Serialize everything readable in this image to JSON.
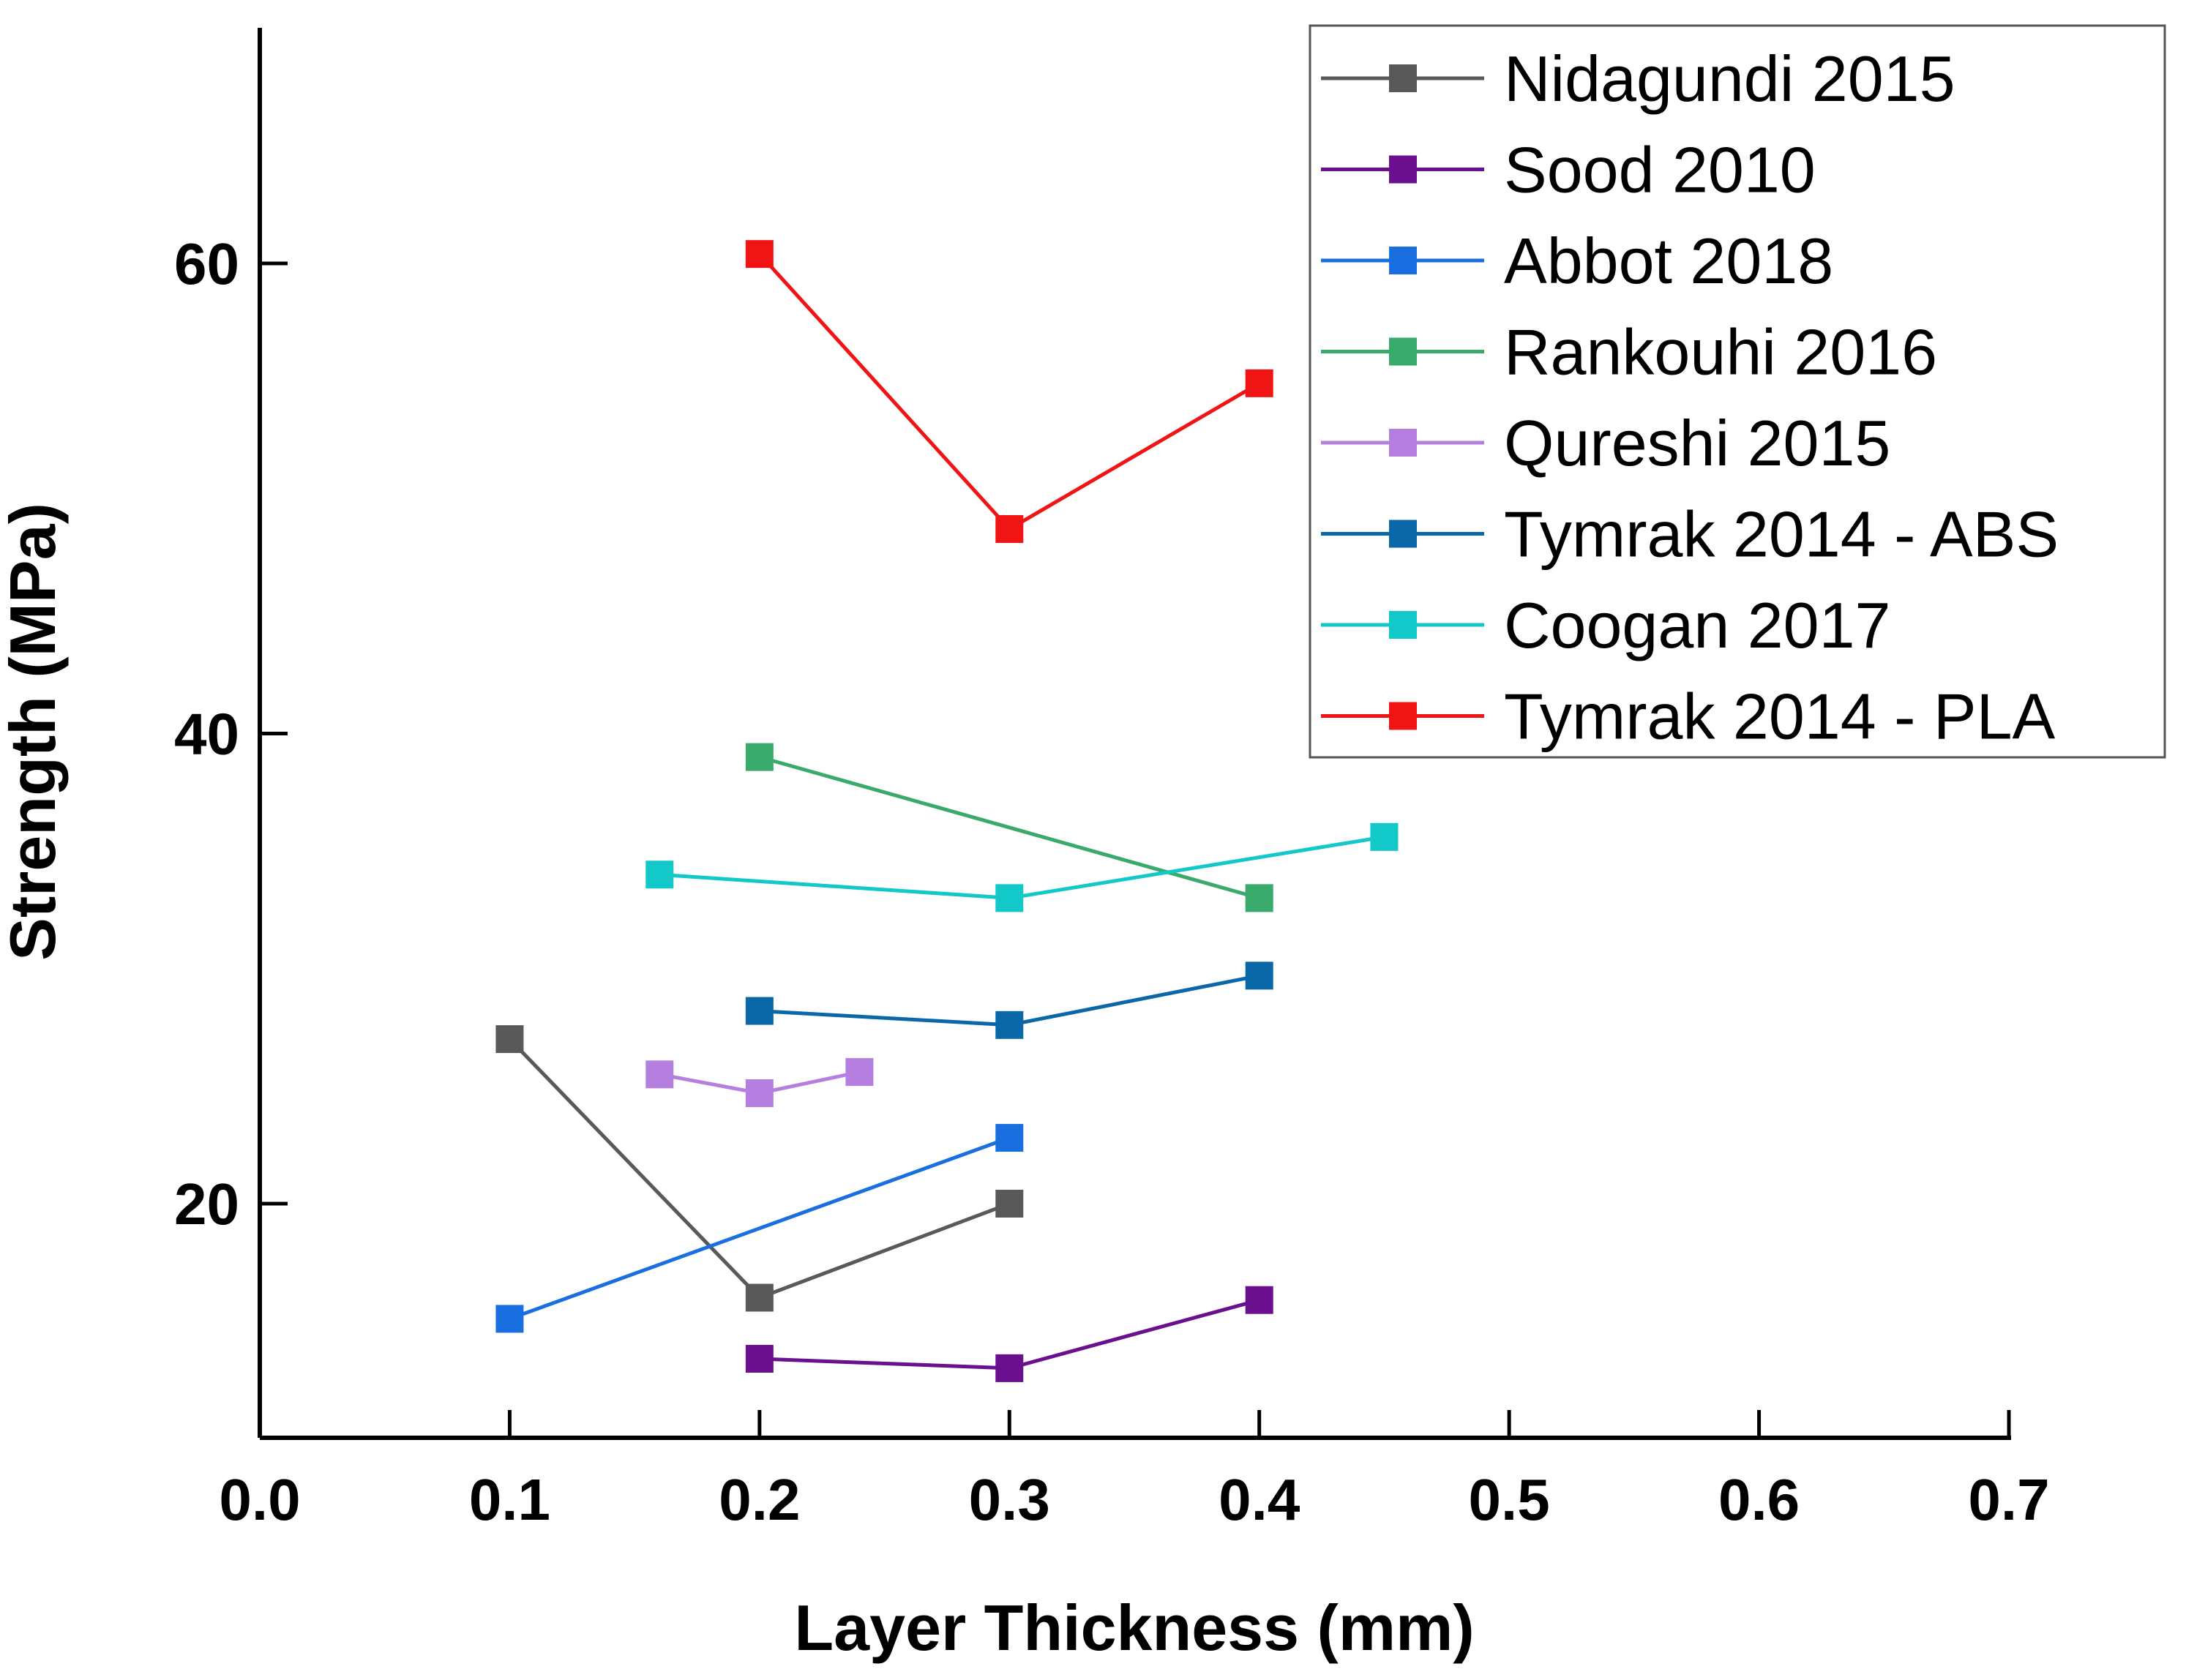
{
  "chart_data": {
    "type": "line",
    "title": "",
    "xlabel": "Layer Thickness (mm)",
    "ylabel": "Strength (MPa)",
    "xlim": [
      0.0,
      0.7
    ],
    "ylim": [
      10,
      70
    ],
    "xticks": [
      "0.0",
      "0.1",
      "0.2",
      "0.3",
      "0.4",
      "0.5",
      "0.6",
      "0.7"
    ],
    "xtick_values": [
      0.0,
      0.1,
      0.2,
      0.3,
      0.4,
      0.5,
      0.6,
      0.7
    ],
    "yticks": [
      "20",
      "40",
      "60"
    ],
    "ytick_values": [
      20,
      40,
      60
    ],
    "grid": false,
    "legend_position": "top-right",
    "series": [
      {
        "name": "Nidagundi 2015",
        "color": "#595959",
        "x": [
          0.1,
          0.2,
          0.3
        ],
        "y": [
          27.0,
          16.0,
          20.0
        ]
      },
      {
        "name": "Sood 2010",
        "color": "#6a0f8e",
        "x": [
          0.2,
          0.3,
          0.4
        ],
        "y": [
          13.4,
          13.0,
          15.9
        ]
      },
      {
        "name": "Abbot 2018",
        "color": "#1a6fe0",
        "x": [
          0.1,
          0.3
        ],
        "y": [
          15.1,
          22.8
        ]
      },
      {
        "name": "Rankouhi 2016",
        "color": "#3aaa6c",
        "x": [
          0.2,
          0.4
        ],
        "y": [
          39.0,
          33.0
        ]
      },
      {
        "name": "Qureshi 2015",
        "color": "#b57fe0",
        "x": [
          0.16,
          0.2,
          0.24
        ],
        "y": [
          25.5,
          24.7,
          25.6
        ]
      },
      {
        "name": "Tymrak 2014 - ABS",
        "color": "#0a68a8",
        "x": [
          0.2,
          0.3,
          0.4
        ],
        "y": [
          28.2,
          27.6,
          29.7
        ]
      },
      {
        "name": "Coogan 2017",
        "color": "#12c8c8",
        "x": [
          0.16,
          0.3,
          0.45
        ],
        "y": [
          34.0,
          33.0,
          35.6
        ]
      },
      {
        "name": "Tymrak 2014 - PLA",
        "color": "#f01414",
        "x": [
          0.2,
          0.3,
          0.4
        ],
        "y": [
          60.4,
          48.7,
          54.9
        ]
      }
    ]
  }
}
